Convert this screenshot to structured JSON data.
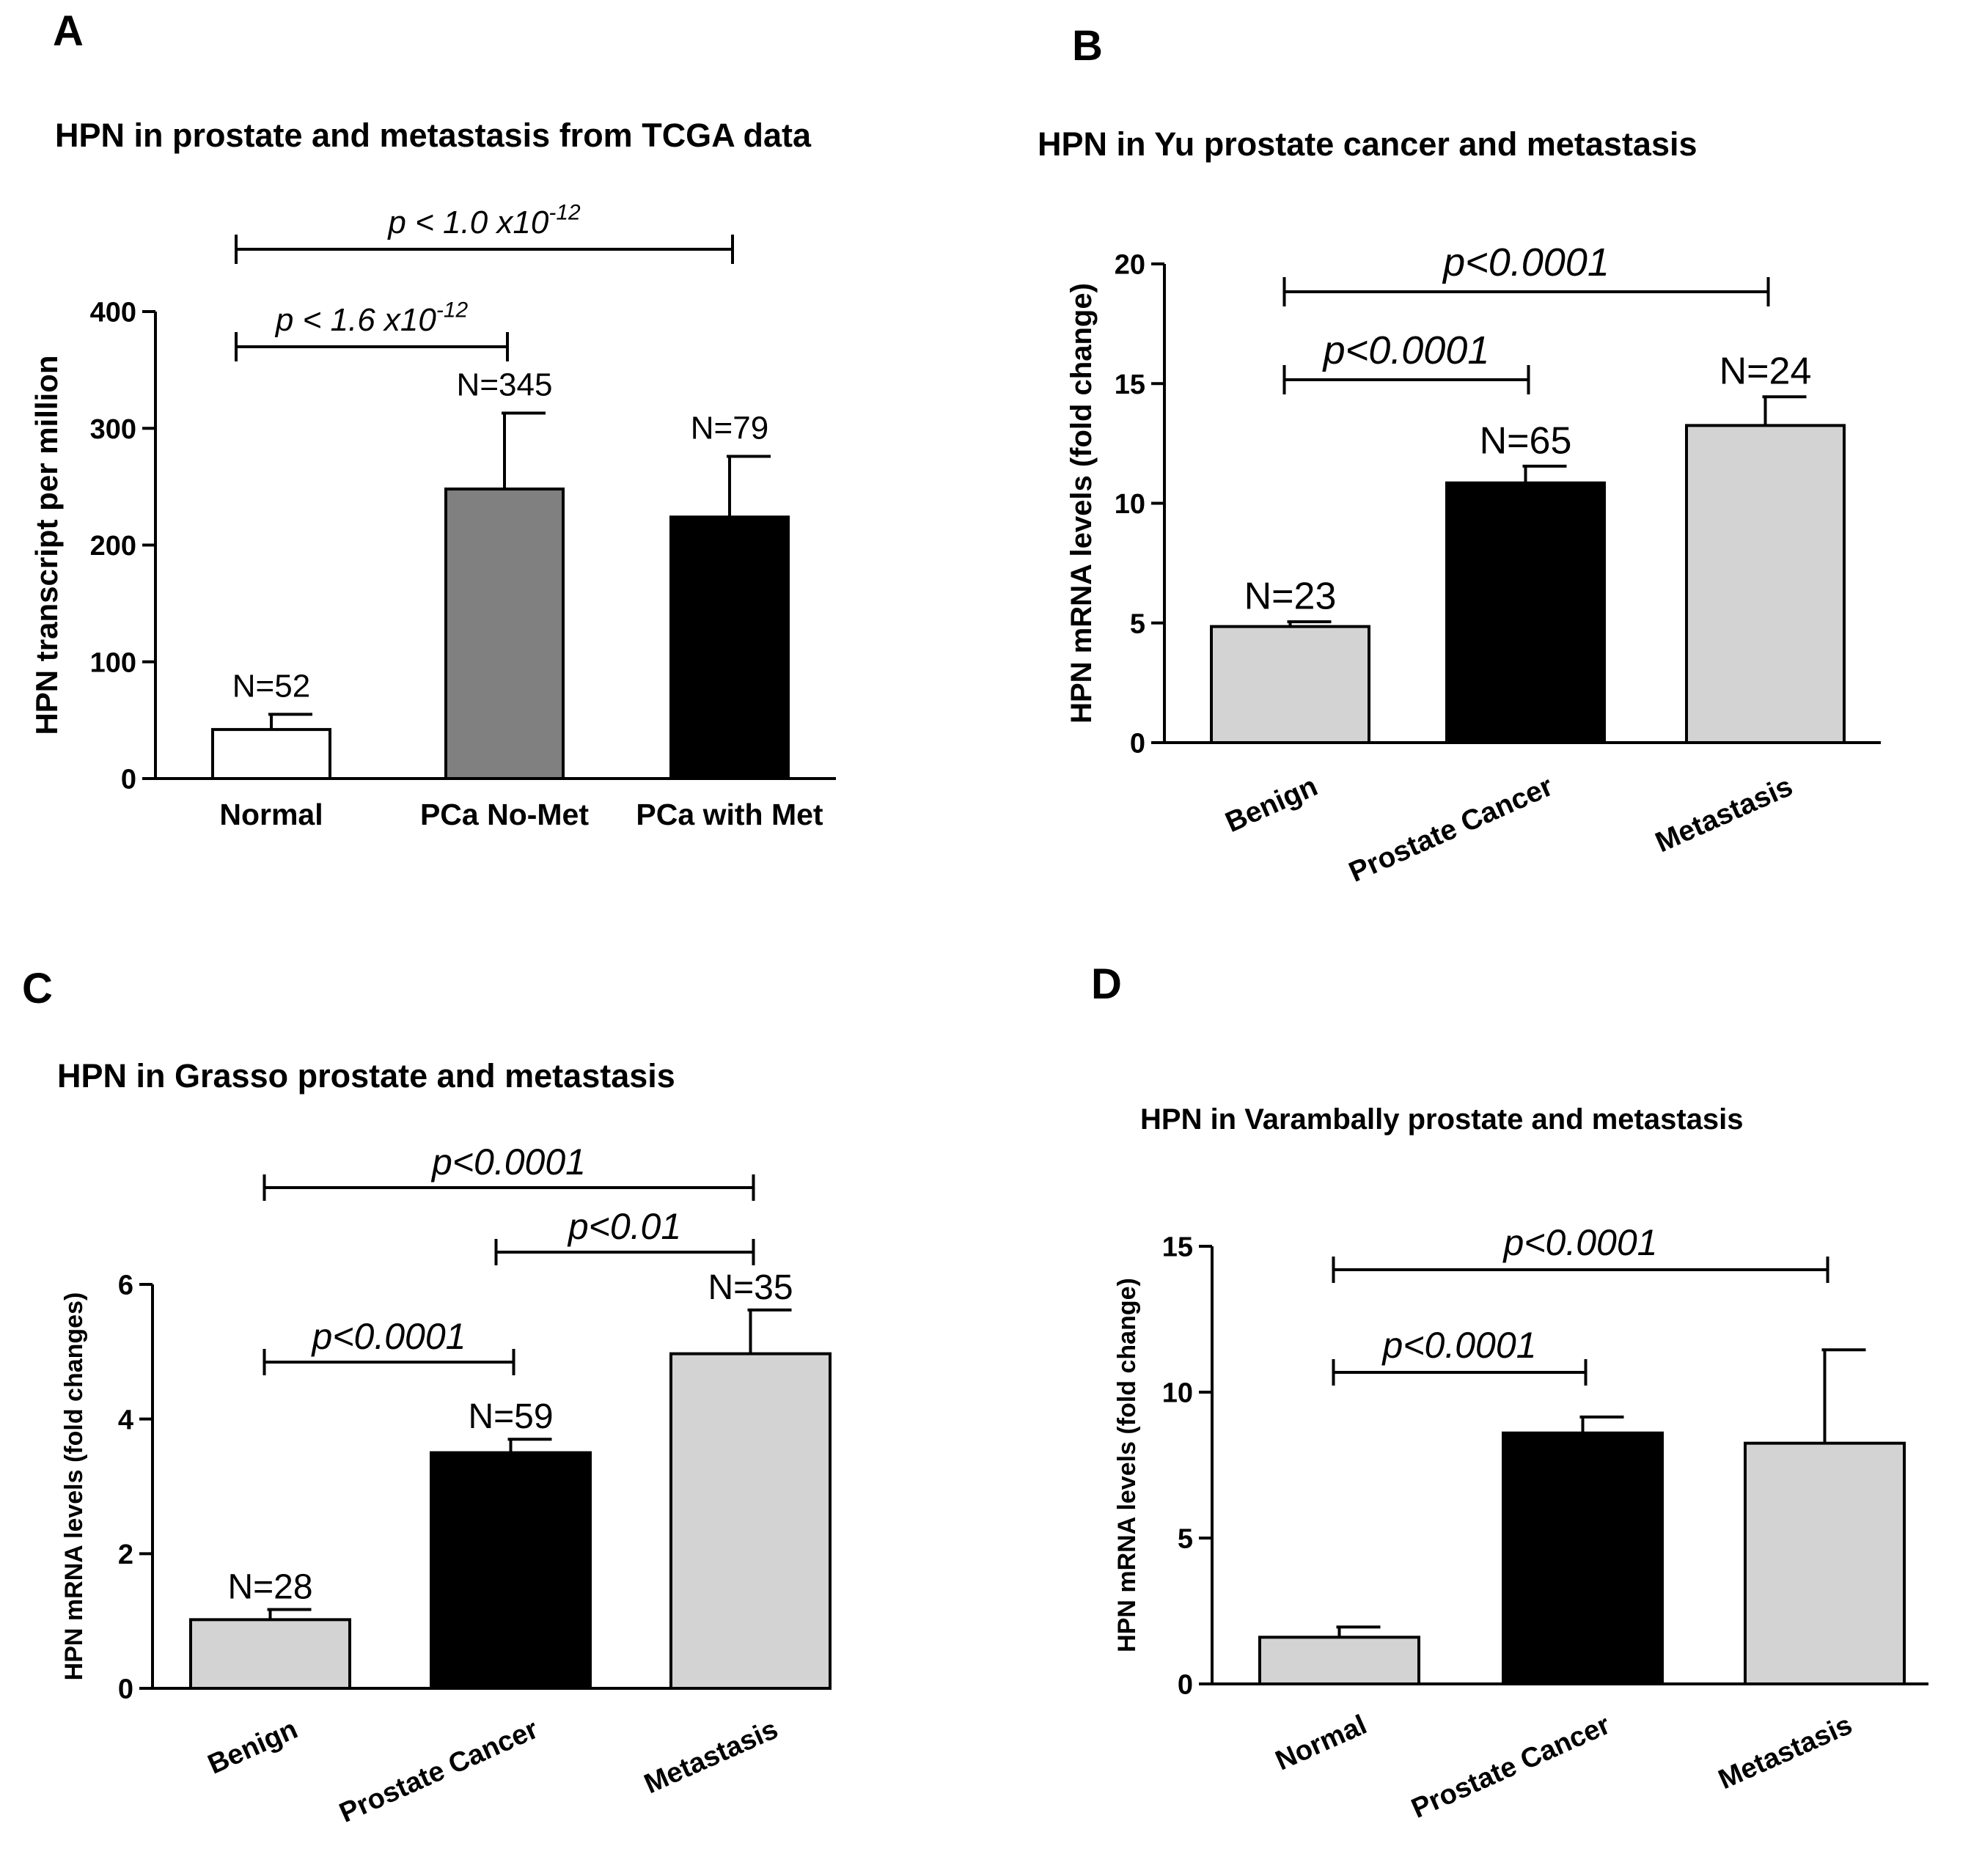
{
  "chart_data": [
    {
      "type": "bar",
      "panel": "A",
      "title": "HPN in prostate and metastasis from TCGA data",
      "ylabel": "HPN transcript per million",
      "xlabel": "",
      "ylim": [
        0,
        400
      ],
      "yticks": [
        0,
        100,
        200,
        300,
        400
      ],
      "categories": [
        "Normal",
        "PCa No-Met",
        "PCa with Met"
      ],
      "values": [
        42,
        248,
        224
      ],
      "errors": [
        13,
        65,
        52
      ],
      "colors": [
        "#ffffff",
        "#808080",
        "#000000"
      ],
      "n_labels": [
        "N=52",
        "N=345",
        "N=79"
      ],
      "comparisons": [
        {
          "from": 0,
          "to": 1,
          "base": "p < 1.6 x10",
          "exp": "-12"
        },
        {
          "from": 0,
          "to": 2,
          "base": "p < 1.0 x10",
          "exp": "-12"
        }
      ]
    },
    {
      "type": "bar",
      "panel": "B",
      "title": "HPN in Yu prostate cancer and metastasis",
      "ylabel": "HPN mRNA levels (fold change)",
      "xlabel": "",
      "ylim": [
        0,
        20
      ],
      "yticks": [
        0,
        5,
        10,
        15,
        20
      ],
      "categories": [
        "Benign",
        "Prostate Cancer",
        "Metastasis"
      ],
      "values": [
        4.85,
        10.85,
        13.25
      ],
      "errors": [
        0.2,
        0.7,
        1.2
      ],
      "colors": [
        "#d3d3d3",
        "#000000",
        "#d3d3d3"
      ],
      "n_labels": [
        "N=23",
        "N=65",
        "N=24"
      ],
      "comparisons": [
        {
          "from": 0,
          "to": 1,
          "base": "p<0.0001",
          "exp": ""
        },
        {
          "from": 0,
          "to": 2,
          "base": "p<0.0001",
          "exp": ""
        }
      ]
    },
    {
      "type": "bar",
      "panel": "C",
      "title": "HPN in Grasso prostate and metastasis",
      "ylabel": "HPN mRNA levels (fold changes)",
      "xlabel": "",
      "ylim": [
        0,
        6
      ],
      "yticks": [
        0,
        2,
        4,
        6
      ],
      "categories": [
        "Benign",
        "Prostate Cancer",
        "Metastasis"
      ],
      "values": [
        1.02,
        3.5,
        4.97
      ],
      "errors": [
        0.15,
        0.2,
        0.65
      ],
      "colors": [
        "#d3d3d3",
        "#000000",
        "#d3d3d3"
      ],
      "n_labels": [
        "N=28",
        "N=59",
        "N=35"
      ],
      "comparisons": [
        {
          "from": 0,
          "to": 1,
          "base": "p<0.0001",
          "exp": ""
        },
        {
          "from": 1,
          "to": 2,
          "base": "p<0.01",
          "exp": ""
        },
        {
          "from": 0,
          "to": 2,
          "base": "p<0.0001",
          "exp": ""
        }
      ]
    },
    {
      "type": "bar",
      "panel": "D",
      "title": "HPN in Varambally prostate and metastasis",
      "ylabel": "HPN mRNA levels (fold change)",
      "xlabel": "",
      "ylim": [
        0,
        15
      ],
      "yticks": [
        0,
        5,
        10,
        15
      ],
      "categories": [
        "Normal",
        "Prostate Cancer",
        "Metastasis"
      ],
      "values": [
        1.6,
        8.6,
        8.25
      ],
      "errors": [
        0.35,
        0.55,
        3.2
      ],
      "colors": [
        "#d3d3d3",
        "#000000",
        "#d3d3d3"
      ],
      "n_labels": [
        "",
        "",
        ""
      ],
      "comparisons": [
        {
          "from": 0,
          "to": 1,
          "base": "p<0.0001",
          "exp": ""
        },
        {
          "from": 0,
          "to": 2,
          "base": "p<0.0001",
          "exp": ""
        }
      ]
    }
  ]
}
